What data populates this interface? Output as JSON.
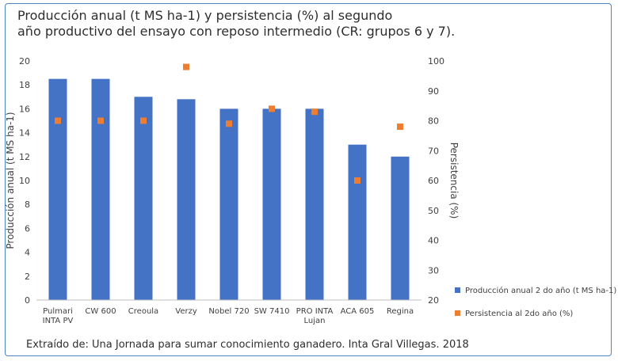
{
  "title_lines": [
    "Producción anual (t MS ha-1) y persistencia (%) al segundo",
    "año productivo del ensayo con reposo intermedio (CR: grupos 6 y 7)."
  ],
  "caption": "Extraído de: Una Jornada para sumar conocimiento ganadero. Inta Gral Villegas. 2018",
  "colors": {
    "bar": "#4472c4",
    "marker": "#ed7d31",
    "frame": "#4a86c5",
    "grid": "#d9d9d9"
  },
  "chart_data": {
    "type": "bar",
    "categories": [
      [
        "Pulmari",
        "INTA PV"
      ],
      [
        "CW 600"
      ],
      [
        "Creoula"
      ],
      [
        "Verzy"
      ],
      [
        "Nobel 720"
      ],
      [
        "SW 7410"
      ],
      [
        "PRO INTA",
        "Lujan"
      ],
      [
        "ACA 605"
      ],
      [
        "Regina"
      ]
    ],
    "series": [
      {
        "name": "Producción  anual 2 do año (t MS ha-1)",
        "type": "bar",
        "axis": "left",
        "values": [
          18.5,
          18.5,
          17.0,
          16.8,
          16.0,
          16.0,
          16.0,
          13.0,
          12.0
        ]
      },
      {
        "name": "Persistencia al 2do año (%)",
        "type": "scatter",
        "axis": "right",
        "values": [
          80,
          80,
          80,
          98,
          79,
          84,
          83,
          60,
          78
        ]
      }
    ],
    "ylabel": "Producción anual (t MS ha-1)",
    "y2label": "Persistencia (%)",
    "ylim": [
      0,
      20
    ],
    "yticks": [
      0,
      2,
      4,
      6,
      8,
      10,
      12,
      14,
      16,
      18,
      20
    ],
    "y2lim": [
      20,
      100
    ],
    "y2ticks": [
      20,
      30,
      40,
      50,
      60,
      70,
      80,
      90,
      100
    ],
    "grid": false,
    "legend_position": "right"
  }
}
